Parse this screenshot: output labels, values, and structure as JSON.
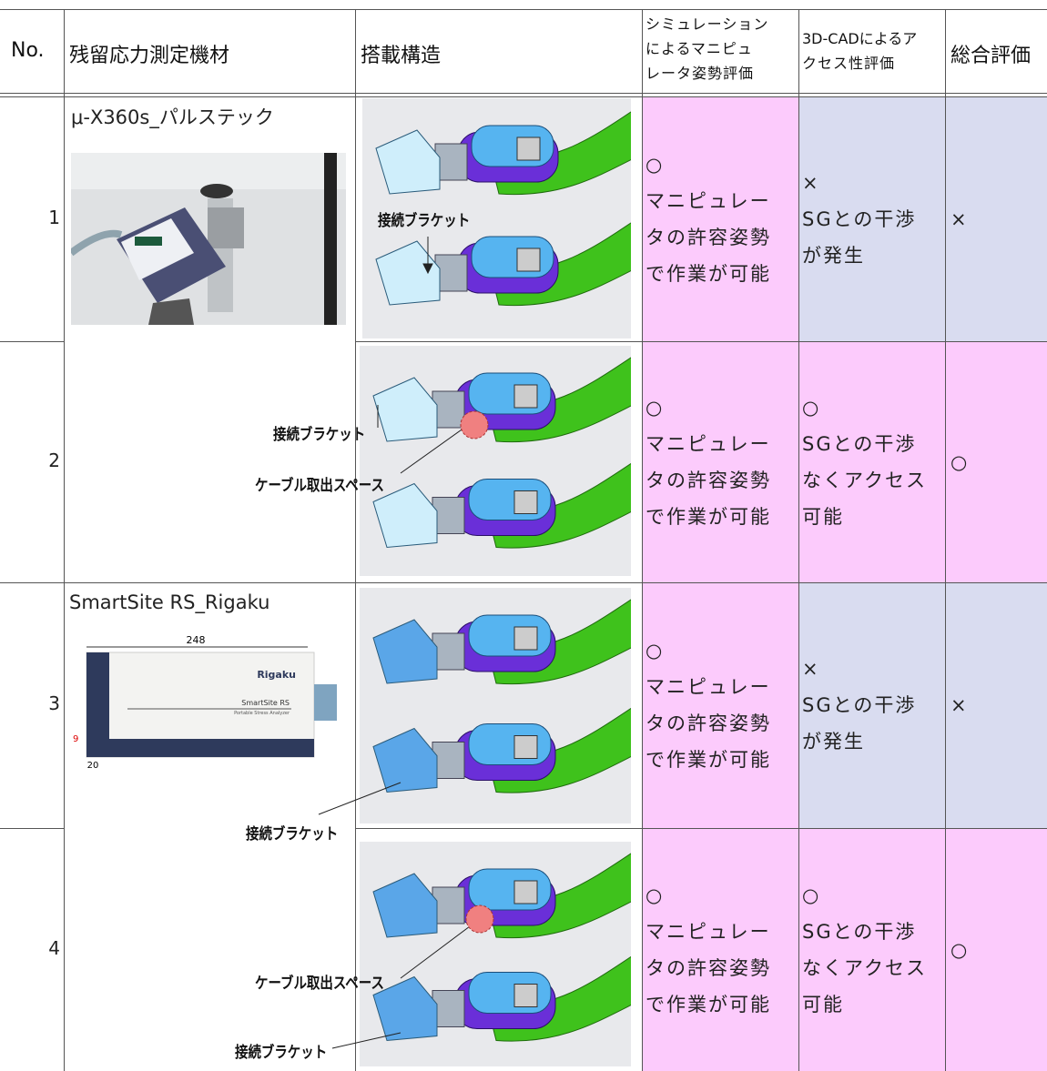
{
  "table": {
    "headers": {
      "no": "No.",
      "device": "残留応力測定機材",
      "structure": "搭載構造",
      "simulation": [
        "シミュレーション",
        "によるマニピュ",
        "レータ姿勢評価"
      ],
      "cad": [
        "3D-CADによるア",
        "クセス性評価"
      ],
      "total": "総合評価"
    },
    "devices": [
      {
        "name": "μ-X360s_パルステック"
      },
      {
        "name": "SmartSite RS_Rigaku",
        "photo_labels": [
          "248",
          "Rigaku",
          "SmartSite RS",
          "Portable Stress Analyzer",
          "9",
          "20"
        ]
      }
    ],
    "rows": [
      {
        "no": "1",
        "annotations": [
          "接続ブラケット"
        ],
        "simulation": {
          "mark": "○",
          "lines": [
            "マニピュレー",
            "タの許容姿勢",
            "で作業が可能"
          ]
        },
        "cad": {
          "mark": "×",
          "lines": [
            "SGとの干渉",
            "が発生"
          ]
        },
        "total": "×"
      },
      {
        "no": "2",
        "annotations": [
          "接続ブラケット",
          "ケーブル取出スペース"
        ],
        "simulation": {
          "mark": "○",
          "lines": [
            "マニピュレー",
            "タの許容姿勢",
            "で作業が可能"
          ]
        },
        "cad": {
          "mark": "○",
          "lines": [
            "SGとの干渉",
            "なくアクセス",
            "可能"
          ]
        },
        "total": "○"
      },
      {
        "no": "3",
        "annotations": [
          "接続ブラケット"
        ],
        "simulation": {
          "mark": "○",
          "lines": [
            "マニピュレー",
            "タの許容姿勢",
            "で作業が可能"
          ]
        },
        "cad": {
          "mark": "×",
          "lines": [
            "SGとの干渉",
            "が発生"
          ]
        },
        "total": "×"
      },
      {
        "no": "4",
        "annotations": [
          "ケーブル取出スペース",
          "接続ブラケット"
        ],
        "simulation": {
          "mark": "○",
          "lines": [
            "マニピュレー",
            "タの許容姿勢",
            "で作業が可能"
          ]
        },
        "cad": {
          "mark": "○",
          "lines": [
            "SGとの干渉",
            "なくアクセス",
            "可能"
          ]
        },
        "total": "○"
      }
    ]
  }
}
